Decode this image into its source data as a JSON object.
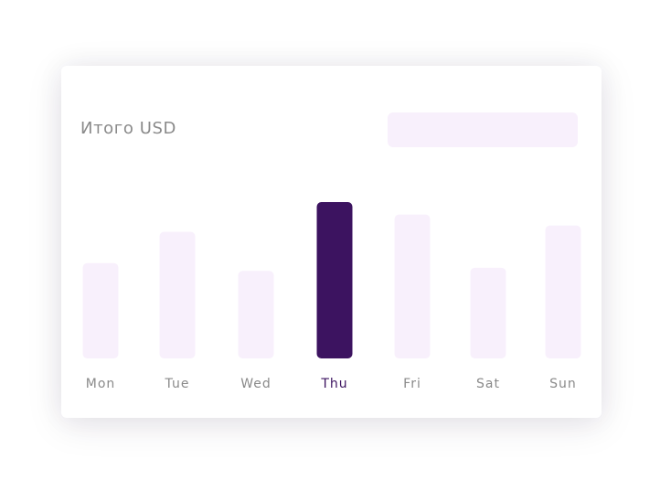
{
  "header": {
    "title": "Итого USD"
  },
  "colors": {
    "bar": "#f8f0fc",
    "bar_selected": "#3c1360",
    "label": "#8a8a8a",
    "label_selected": "#3c1360",
    "pill": "#f8f0fc"
  },
  "chart_data": {
    "type": "bar",
    "categories": [
      "Mon",
      "Tue",
      "Wed",
      "Thu",
      "Fri",
      "Sat",
      "Sun"
    ],
    "values": [
      61,
      81,
      56,
      100,
      92,
      58,
      85
    ],
    "selected_category": "Thu",
    "ylim": [
      0,
      100
    ],
    "grid": false,
    "legend": "none"
  }
}
